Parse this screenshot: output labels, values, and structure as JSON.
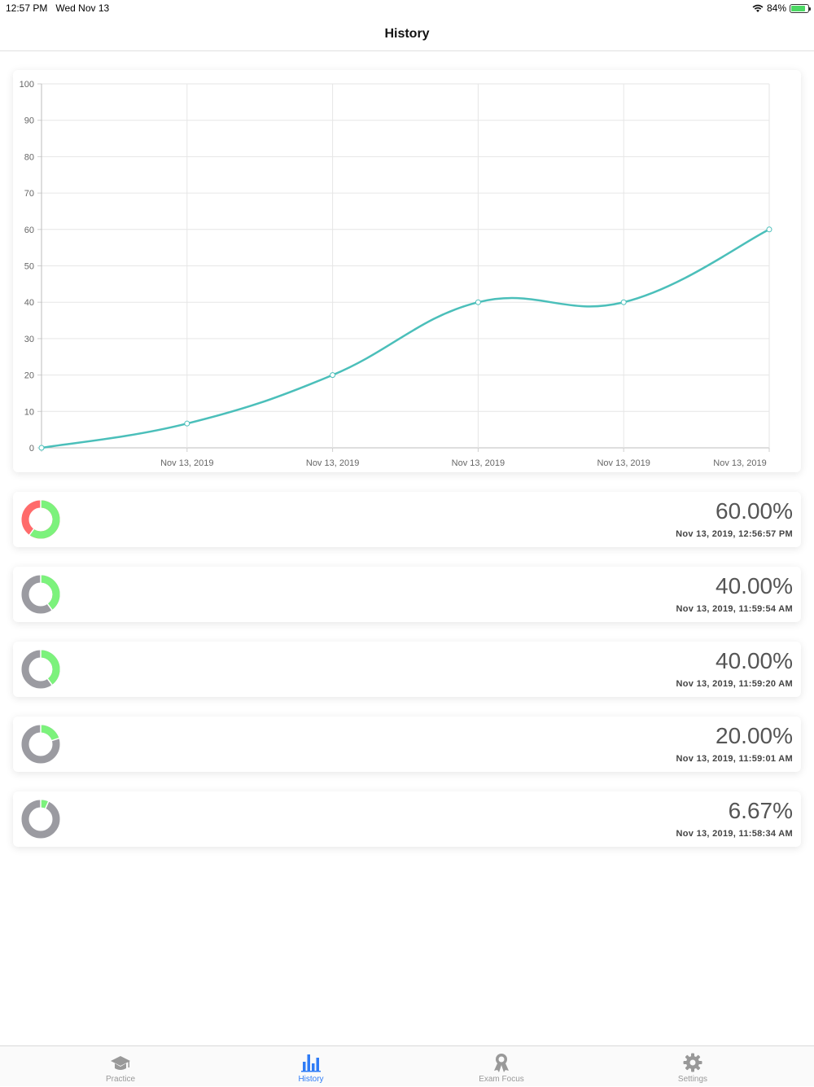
{
  "status_bar": {
    "time": "12:57 PM",
    "date": "Wed Nov 13",
    "battery": "84%",
    "battery_level": 0.84
  },
  "nav": {
    "title": "History"
  },
  "chart_data": {
    "type": "line",
    "x": [
      "",
      "Nov 13, 2019",
      "Nov 13, 2019",
      "Nov 13, 2019",
      "Nov 13, 2019",
      "Nov 13, 2019"
    ],
    "series": [
      {
        "values": [
          0,
          6.67,
          20,
          40,
          40,
          60
        ]
      }
    ],
    "y_ticks": [
      0,
      10,
      20,
      30,
      40,
      50,
      60,
      70,
      80,
      90,
      100
    ],
    "ylim": [
      0,
      100
    ],
    "grid": true,
    "line_color": "#4bbfba",
    "smooth": true
  },
  "history": [
    {
      "percent": "60.00%",
      "date": "Nov 13, 2019, 12:56:57 PM",
      "score": 0.6,
      "remainder_color": "#ff6b6b"
    },
    {
      "percent": "40.00%",
      "date": "Nov 13, 2019, 11:59:54 AM",
      "score": 0.4,
      "remainder_color": "#9b9ba1"
    },
    {
      "percent": "40.00%",
      "date": "Nov 13, 2019, 11:59:20 AM",
      "score": 0.4,
      "remainder_color": "#9b9ba1"
    },
    {
      "percent": "20.00%",
      "date": "Nov 13, 2019, 11:59:01 AM",
      "score": 0.2,
      "remainder_color": "#9b9ba1"
    },
    {
      "percent": "6.67%",
      "date": "Nov 13, 2019, 11:58:34 AM",
      "score": 0.0667,
      "remainder_color": "#9b9ba1"
    }
  ],
  "colors": {
    "score": "#7cf27c",
    "accent": "#2f7cf6"
  },
  "tabs": [
    {
      "label": "Practice",
      "icon": "graduation-cap-icon",
      "active": false
    },
    {
      "label": "History",
      "icon": "bar-chart-icon",
      "active": true
    },
    {
      "label": "Exam Focus",
      "icon": "award-ribbon-icon",
      "active": false
    },
    {
      "label": "Settings",
      "icon": "gear-icon",
      "active": false
    }
  ]
}
